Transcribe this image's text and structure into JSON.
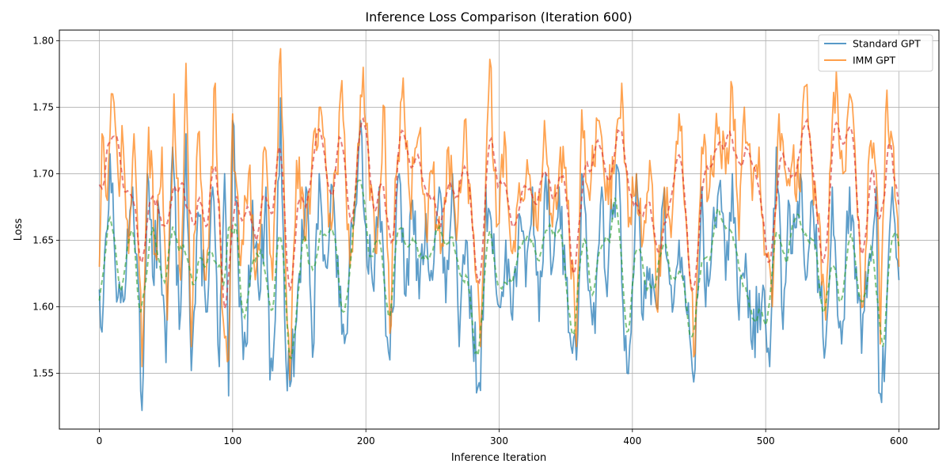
{
  "chart_data": {
    "type": "line",
    "title": "Inference Loss Comparison (Iteration 600)",
    "xlabel": "Inference Iteration",
    "ylabel": "Loss",
    "xlim": [
      -30,
      630
    ],
    "ylim": [
      1.508,
      1.808
    ],
    "xticks": [
      0,
      100,
      200,
      300,
      400,
      500,
      600
    ],
    "yticks": [
      1.55,
      1.6,
      1.65,
      1.7,
      1.75,
      1.8
    ],
    "ytick_labels": [
      "1.55",
      "1.60",
      "1.65",
      "1.70",
      "1.75",
      "1.80"
    ],
    "grid": true,
    "legend_position": "top-right",
    "colors": {
      "standard": "#1f77b4",
      "imm": "#ff7f0e",
      "standard_ma": "#2ca02c",
      "imm_ma": "#d62728"
    },
    "series": [
      {
        "name": "Standard GPT",
        "key": "standard",
        "x_range": [
          0,
          600
        ],
        "anchors": [
          [
            0,
            1.613
          ],
          [
            2,
            1.581
          ],
          [
            5,
            1.655
          ],
          [
            8,
            1.715
          ],
          [
            12,
            1.628
          ],
          [
            16,
            1.603
          ],
          [
            20,
            1.622
          ],
          [
            25,
            1.69
          ],
          [
            29,
            1.622
          ],
          [
            32,
            1.522
          ],
          [
            36,
            1.7
          ],
          [
            40,
            1.623
          ],
          [
            45,
            1.67
          ],
          [
            50,
            1.558
          ],
          [
            55,
            1.72
          ],
          [
            60,
            1.583
          ],
          [
            65,
            1.73
          ],
          [
            69,
            1.552
          ],
          [
            75,
            1.668
          ],
          [
            80,
            1.596
          ],
          [
            85,
            1.69
          ],
          [
            90,
            1.555
          ],
          [
            94,
            1.7
          ],
          [
            97,
            1.533
          ],
          [
            100,
            1.74
          ],
          [
            105,
            1.6
          ],
          [
            110,
            1.57
          ],
          [
            115,
            1.68
          ],
          [
            120,
            1.605
          ],
          [
            125,
            1.69
          ],
          [
            128,
            1.545
          ],
          [
            132,
            1.59
          ],
          [
            136,
            1.757
          ],
          [
            140,
            1.56
          ],
          [
            143,
            1.54
          ],
          [
            148,
            1.59
          ],
          [
            155,
            1.69
          ],
          [
            160,
            1.562
          ],
          [
            165,
            1.7
          ],
          [
            170,
            1.63
          ],
          [
            175,
            1.69
          ],
          [
            180,
            1.6
          ],
          [
            186,
            1.58
          ],
          [
            190,
            1.66
          ],
          [
            196,
            1.74
          ],
          [
            200,
            1.66
          ],
          [
            205,
            1.618
          ],
          [
            210,
            1.69
          ],
          [
            215,
            1.578
          ],
          [
            218,
            1.56
          ],
          [
            225,
            1.7
          ],
          [
            230,
            1.608
          ],
          [
            235,
            1.68
          ],
          [
            240,
            1.606
          ],
          [
            245,
            1.67
          ],
          [
            250,
            1.62
          ],
          [
            255,
            1.69
          ],
          [
            260,
            1.603
          ],
          [
            265,
            1.7
          ],
          [
            270,
            1.57
          ],
          [
            275,
            1.65
          ],
          [
            280,
            1.58
          ],
          [
            286,
            1.537
          ],
          [
            290,
            1.69
          ],
          [
            295,
            1.64
          ],
          [
            300,
            1.6
          ],
          [
            305,
            1.65
          ],
          [
            310,
            1.59
          ],
          [
            315,
            1.67
          ],
          [
            320,
            1.615
          ],
          [
            325,
            1.69
          ],
          [
            330,
            1.589
          ],
          [
            335,
            1.7
          ],
          [
            340,
            1.63
          ],
          [
            345,
            1.69
          ],
          [
            350,
            1.62
          ],
          [
            355,
            1.565
          ],
          [
            358,
            1.56
          ],
          [
            362,
            1.7
          ],
          [
            368,
            1.612
          ],
          [
            372,
            1.58
          ],
          [
            377,
            1.69
          ],
          [
            380,
            1.62
          ],
          [
            385,
            1.666
          ],
          [
            390,
            1.7
          ],
          [
            394,
            1.567
          ],
          [
            398,
            1.571
          ],
          [
            403,
            1.7
          ],
          [
            408,
            1.59
          ],
          [
            412,
            1.62
          ],
          [
            418,
            1.6
          ],
          [
            423,
            1.68
          ],
          [
            430,
            1.596
          ],
          [
            435,
            1.65
          ],
          [
            440,
            1.6
          ],
          [
            447,
            1.553
          ],
          [
            452,
            1.69
          ],
          [
            455,
            1.6
          ],
          [
            460,
            1.658
          ],
          [
            465,
            1.69
          ],
          [
            470,
            1.62
          ],
          [
            475,
            1.7
          ],
          [
            480,
            1.59
          ],
          [
            485,
            1.64
          ],
          [
            490,
            1.568
          ],
          [
            495,
            1.61
          ],
          [
            500,
            1.586
          ],
          [
            503,
            1.555
          ],
          [
            508,
            1.72
          ],
          [
            513,
            1.583
          ],
          [
            517,
            1.68
          ],
          [
            520,
            1.64
          ],
          [
            526,
            1.7
          ],
          [
            530,
            1.62
          ],
          [
            535,
            1.68
          ],
          [
            540,
            1.62
          ],
          [
            545,
            1.571
          ],
          [
            550,
            1.69
          ],
          [
            553,
            1.625
          ],
          [
            557,
            1.572
          ],
          [
            563,
            1.69
          ],
          [
            568,
            1.63
          ],
          [
            572,
            1.565
          ],
          [
            578,
            1.64
          ],
          [
            583,
            1.69
          ],
          [
            585,
            1.535
          ],
          [
            590,
            1.572
          ],
          [
            595,
            1.69
          ],
          [
            600,
            1.62
          ]
        ],
        "noise": 0.048,
        "seed": 13
      },
      {
        "name": "IMM GPT",
        "key": "imm",
        "x_range": [
          0,
          600
        ],
        "anchors": [
          [
            0,
            1.63
          ],
          [
            2,
            1.73
          ],
          [
            6,
            1.68
          ],
          [
            10,
            1.76
          ],
          [
            14,
            1.7
          ],
          [
            18,
            1.72
          ],
          [
            22,
            1.64
          ],
          [
            26,
            1.73
          ],
          [
            30,
            1.625
          ],
          [
            32,
            1.555
          ],
          [
            37,
            1.735
          ],
          [
            42,
            1.64
          ],
          [
            47,
            1.72
          ],
          [
            51,
            1.59
          ],
          [
            56,
            1.76
          ],
          [
            61,
            1.62
          ],
          [
            65,
            1.783
          ],
          [
            69,
            1.57
          ],
          [
            74,
            1.73
          ],
          [
            80,
            1.62
          ],
          [
            87,
            1.768
          ],
          [
            92,
            1.6
          ],
          [
            97,
            1.56
          ],
          [
            100,
            1.745
          ],
          [
            105,
            1.64
          ],
          [
            112,
            1.7
          ],
          [
            118,
            1.63
          ],
          [
            124,
            1.72
          ],
          [
            130,
            1.62
          ],
          [
            136,
            1.794
          ],
          [
            140,
            1.62
          ],
          [
            143,
            1.545
          ],
          [
            148,
            1.71
          ],
          [
            155,
            1.65
          ],
          [
            160,
            1.72
          ],
          [
            166,
            1.75
          ],
          [
            172,
            1.66
          ],
          [
            178,
            1.7
          ],
          [
            182,
            1.77
          ],
          [
            188,
            1.63
          ],
          [
            193,
            1.7
          ],
          [
            198,
            1.78
          ],
          [
            203,
            1.68
          ],
          [
            208,
            1.64
          ],
          [
            214,
            1.75
          ],
          [
            218,
            1.58
          ],
          [
            223,
            1.7
          ],
          [
            228,
            1.772
          ],
          [
            233,
            1.68
          ],
          [
            240,
            1.73
          ],
          [
            245,
            1.66
          ],
          [
            250,
            1.7
          ],
          [
            256,
            1.64
          ],
          [
            262,
            1.72
          ],
          [
            268,
            1.65
          ],
          [
            274,
            1.74
          ],
          [
            280,
            1.66
          ],
          [
            286,
            1.57
          ],
          [
            290,
            1.7
          ],
          [
            293,
            1.786
          ],
          [
            298,
            1.66
          ],
          [
            305,
            1.72
          ],
          [
            310,
            1.64
          ],
          [
            316,
            1.68
          ],
          [
            322,
            1.7
          ],
          [
            328,
            1.66
          ],
          [
            334,
            1.74
          ],
          [
            340,
            1.66
          ],
          [
            346,
            1.72
          ],
          [
            352,
            1.68
          ],
          [
            358,
            1.57
          ],
          [
            362,
            1.748
          ],
          [
            368,
            1.68
          ],
          [
            374,
            1.74
          ],
          [
            380,
            1.68
          ],
          [
            386,
            1.7
          ],
          [
            392,
            1.768
          ],
          [
            397,
            1.66
          ],
          [
            403,
            1.7
          ],
          [
            408,
            1.65
          ],
          [
            414,
            1.7
          ],
          [
            418,
            1.6
          ],
          [
            424,
            1.69
          ],
          [
            430,
            1.67
          ],
          [
            435,
            1.745
          ],
          [
            440,
            1.67
          ],
          [
            447,
            1.565
          ],
          [
            452,
            1.72
          ],
          [
            458,
            1.69
          ],
          [
            464,
            1.73
          ],
          [
            470,
            1.7
          ],
          [
            475,
            1.765
          ],
          [
            480,
            1.65
          ],
          [
            484,
            1.75
          ],
          [
            490,
            1.68
          ],
          [
            495,
            1.72
          ],
          [
            500,
            1.64
          ],
          [
            505,
            1.6
          ],
          [
            510,
            1.745
          ],
          [
            515,
            1.7
          ],
          [
            520,
            1.71
          ],
          [
            525,
            1.69
          ],
          [
            530,
            1.766
          ],
          [
            535,
            1.7
          ],
          [
            540,
            1.67
          ],
          [
            545,
            1.59
          ],
          [
            550,
            1.74
          ],
          [
            553,
            1.777
          ],
          [
            558,
            1.7
          ],
          [
            563,
            1.76
          ],
          [
            568,
            1.69
          ],
          [
            573,
            1.6
          ],
          [
            578,
            1.72
          ],
          [
            583,
            1.7
          ],
          [
            586,
            1.572
          ],
          [
            590,
            1.745
          ],
          [
            595,
            1.726
          ],
          [
            600,
            1.63
          ]
        ],
        "noise": 0.045,
        "seed": 71
      }
    ],
    "moving_averages": [
      {
        "key": "standard_ma",
        "of": "standard",
        "window": 9
      },
      {
        "key": "imm_ma",
        "of": "imm",
        "window": 9
      }
    ]
  }
}
